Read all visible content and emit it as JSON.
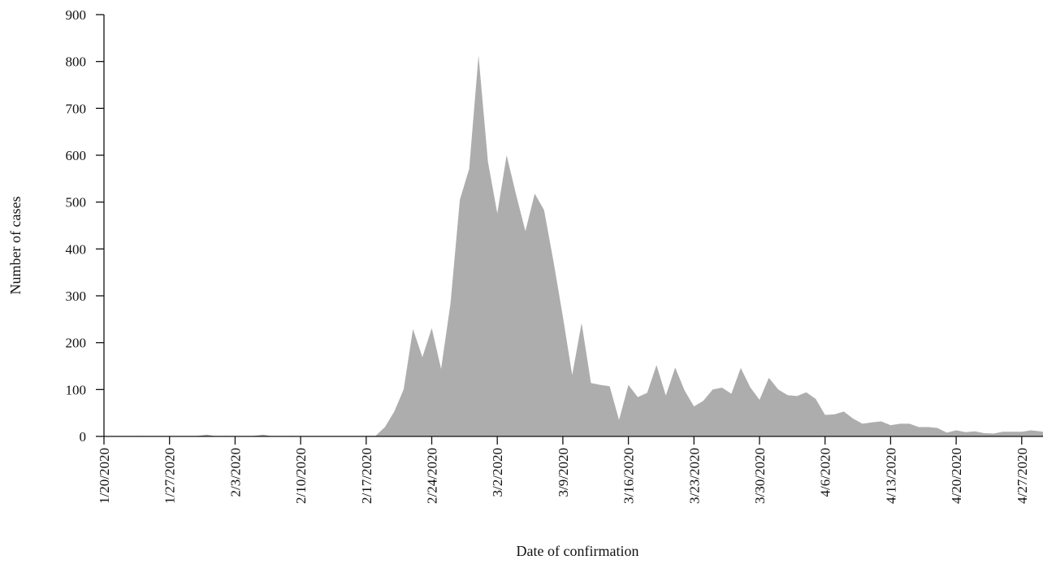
{
  "chart_data": {
    "type": "area",
    "title": "",
    "xlabel": "Date of confirmation",
    "ylabel": "Number of cases",
    "ylim": [
      0,
      900
    ],
    "yticks": [
      0,
      100,
      200,
      300,
      400,
      500,
      600,
      700,
      800,
      900
    ],
    "xlim": [
      "1/20/2020",
      "4/30/2020"
    ],
    "xticks": [
      "1/20/2020",
      "1/27/2020",
      "2/3/2020",
      "2/10/2020",
      "2/17/2020",
      "2/24/2020",
      "3/2/2020",
      "3/9/2020",
      "3/16/2020",
      "3/23/2020",
      "3/30/2020",
      "4/6/2020",
      "4/13/2020",
      "4/20/2020",
      "4/27/2020"
    ],
    "grid": false,
    "fill_color": "#adadad",
    "series": [
      {
        "x": [
          "1/20/2020",
          "1/21/2020",
          "1/22/2020",
          "1/23/2020",
          "1/24/2020",
          "1/25/2020",
          "1/26/2020",
          "1/27/2020",
          "1/28/2020",
          "1/29/2020",
          "1/30/2020",
          "1/31/2020",
          "2/1/2020",
          "2/2/2020",
          "2/3/2020",
          "2/4/2020",
          "2/5/2020",
          "2/6/2020",
          "2/7/2020",
          "2/8/2020",
          "2/9/2020",
          "2/10/2020",
          "2/11/2020",
          "2/12/2020",
          "2/13/2020",
          "2/14/2020",
          "2/15/2020",
          "2/16/2020",
          "2/17/2020",
          "2/18/2020",
          "2/19/2020",
          "2/20/2020",
          "2/21/2020",
          "2/22/2020",
          "2/23/2020",
          "2/24/2020",
          "2/25/2020",
          "2/26/2020",
          "2/27/2020",
          "2/28/2020",
          "2/29/2020",
          "3/1/2020",
          "3/2/2020",
          "3/3/2020",
          "3/4/2020",
          "3/5/2020",
          "3/6/2020",
          "3/7/2020",
          "3/8/2020",
          "3/9/2020",
          "3/10/2020",
          "3/11/2020",
          "3/12/2020",
          "3/13/2020",
          "3/14/2020",
          "3/15/2020",
          "3/16/2020",
          "3/17/2020",
          "3/18/2020",
          "3/19/2020",
          "3/20/2020",
          "3/21/2020",
          "3/22/2020",
          "3/23/2020",
          "3/24/2020",
          "3/25/2020",
          "3/26/2020",
          "3/27/2020",
          "3/28/2020",
          "3/29/2020",
          "3/30/2020",
          "3/31/2020",
          "4/1/2020",
          "4/2/2020",
          "4/3/2020",
          "4/4/2020",
          "4/5/2020",
          "4/6/2020",
          "4/7/2020",
          "4/8/2020",
          "4/9/2020",
          "4/10/2020",
          "4/11/2020",
          "4/12/2020",
          "4/13/2020",
          "4/14/2020",
          "4/15/2020",
          "4/16/2020",
          "4/17/2020",
          "4/18/2020",
          "4/19/2020",
          "4/20/2020",
          "4/21/2020",
          "4/22/2020",
          "4/23/2020",
          "4/24/2020",
          "4/25/2020",
          "4/26/2020",
          "4/27/2020",
          "4/28/2020",
          "4/29/2020",
          "4/30/2020"
        ],
        "values": [
          1,
          0,
          0,
          0,
          1,
          0,
          0,
          1,
          0,
          0,
          1,
          4,
          0,
          1,
          0,
          0,
          1,
          4,
          0,
          0,
          1,
          0,
          0,
          0,
          0,
          0,
          0,
          0,
          1,
          1,
          20,
          53,
          100,
          229,
          169,
          231,
          144,
          284,
          505,
          571,
          813,
          586,
          476,
          600,
          516,
          438,
          518,
          483,
          373,
          256,
          131,
          242,
          114,
          110,
          107,
          35,
          110,
          84,
          93,
          152,
          87,
          147,
          98,
          64,
          76,
          100,
          104,
          91,
          146,
          105,
          78,
          125,
          100,
          88,
          86,
          94,
          80,
          46,
          47,
          53,
          38,
          27,
          30,
          32,
          24,
          27,
          27,
          20,
          20,
          18,
          8,
          13,
          9,
          11,
          7,
          6,
          10,
          10,
          10,
          13,
          11,
          7
        ]
      }
    ]
  }
}
